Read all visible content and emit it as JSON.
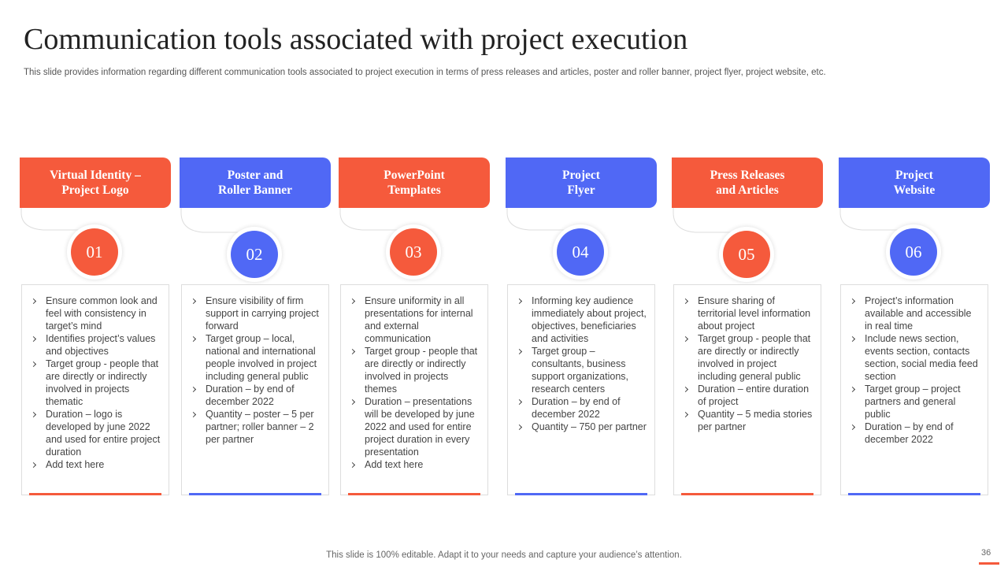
{
  "header": {
    "title": "Communication tools associated with project execution",
    "subtitle": "This slide provides information regarding different communication tools associated to project execution in terms of press releases and articles, poster and roller banner, project flyer, project website, etc."
  },
  "columns": [
    {
      "title": [
        "Virtual Identity –",
        "Project Logo"
      ],
      "number": "01",
      "bullets": [
        "Ensure common look and feel with consistency in target’s mind",
        "Identifies project’s values and objectives",
        "Target group - people that are directly or indirectly involved in projects thematic",
        "Duration – logo is developed by june 2022 and used for entire project duration",
        "Add text here"
      ]
    },
    {
      "title": [
        "Poster and",
        "Roller Banner"
      ],
      "number": "02",
      "bullets": [
        "Ensure visibility of firm support in carrying project forward",
        "Target group – local, national and international people involved in project including general public",
        "Duration – by end of december 2022",
        "Quantity – poster – 5 per partner; roller banner – 2 per partner"
      ]
    },
    {
      "title": [
        "PowerPoint",
        "Templates"
      ],
      "number": "03",
      "bullets": [
        "Ensure uniformity in all presentations for internal and external communication",
        "Target group - people that are directly or indirectly involved in projects themes",
        "Duration – presentations will be developed by june 2022 and used for entire project duration in every presentation",
        "Add text here"
      ]
    },
    {
      "title": [
        "Project",
        "Flyer"
      ],
      "number": "04",
      "bullets": [
        "Informing key audience immediately about project, objectives, beneficiaries and activities",
        "Target group – consultants, business support organizations, research centers",
        "Duration – by end of december 2022",
        "Quantity – 750 per partner"
      ]
    },
    {
      "title": [
        "Press Releases",
        "and Articles"
      ],
      "number": "05",
      "bullets": [
        "Ensure sharing of territorial level information about project",
        "Target group - people that are directly or indirectly involved in project including general public",
        "Duration – entire duration of project",
        "Quantity – 5 media stories per partner"
      ]
    },
    {
      "title": [
        "Project",
        "Website"
      ],
      "number": "06",
      "bullets": [
        "Project’s information available and accessible in real time",
        "Include news section, events section, contacts section, social media feed section",
        "Target group – project partners and general public",
        "Duration – by end of december 2022"
      ]
    }
  ],
  "footer": {
    "note": "This slide is 100% editable. Adapt it to your needs and capture your audience’s attention.",
    "page": "36"
  }
}
